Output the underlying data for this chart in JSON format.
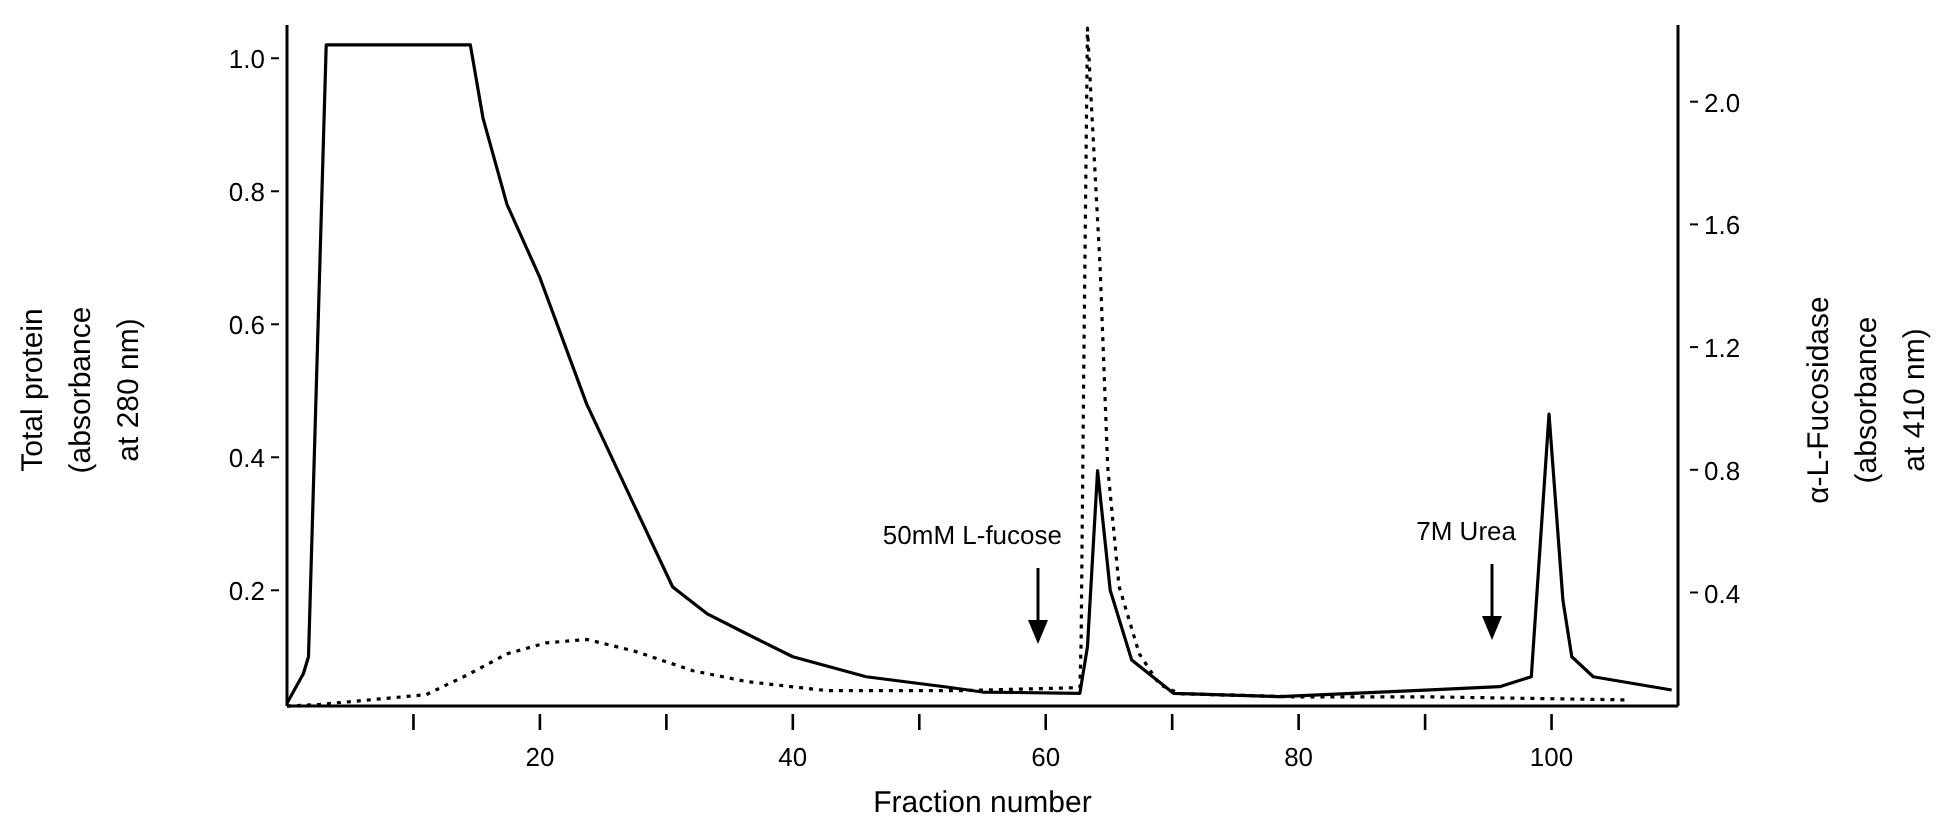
{
  "chart_data": {
    "type": "line",
    "xlabel": "Fraction number",
    "ylabel": "Total protein\n(absorbance\nat 280 nm)",
    "y2label": "α-L-Fucosidase\n(absorbance\nat 410 nm)",
    "xlim": [
      0,
      110
    ],
    "xticks": [
      {
        "value": 10,
        "label": null
      },
      20,
      {
        "value": 30,
        "label": null
      },
      40,
      {
        "value": 50,
        "label": null
      },
      60,
      {
        "value": 70,
        "label": null
      },
      80,
      {
        "value": 90,
        "label": null
      },
      100
    ],
    "ylim": [
      0.026,
      1.05
    ],
    "yticks": [
      0.2,
      0.4,
      0.6,
      0.8,
      {
        "value": 1,
        "label": "1.0"
      }
    ],
    "y2lim": [
      0.03,
      2.25
    ],
    "y2ticks": [
      0.4,
      0.8,
      1.2,
      1.6,
      {
        "value": 2,
        "label": "2.0"
      }
    ],
    "grid": false,
    "marker": "none",
    "series": [
      {
        "color": "#000000",
        "axis": "y",
        "line_style": "solid",
        "x": [
          0,
          1.3,
          1.7,
          3.1,
          14.5,
          15.5,
          17.4,
          20,
          23.7,
          27.4,
          30.5,
          33.2,
          36.3,
          40,
          45.8,
          52,
          55,
          62.7,
          63.3,
          64.1,
          65.1,
          66.8,
          70.1,
          78.5,
          90,
          95.9,
          98.4,
          99.8,
          100.9,
          101.6,
          103.3,
          109.5
        ],
        "values": [
          0.03,
          0.075,
          0.1,
          1.02,
          1.02,
          0.91,
          0.78,
          0.67,
          0.48,
          0.33,
          0.205,
          0.165,
          0.135,
          0.1,
          0.07,
          0.055,
          0.047,
          0.045,
          0.115,
          0.38,
          0.2,
          0.095,
          0.045,
          0.04,
          0.05,
          0.055,
          0.07,
          0.465,
          0.185,
          0.1,
          0.07,
          0.05
        ]
      },
      {
        "color": "#000000",
        "axis": "y2",
        "line_style": "dotted",
        "x": [
          0,
          2.6,
          11,
          14.2,
          17.4,
          20.5,
          23.7,
          27.4,
          32.1,
          36.3,
          42.7,
          53.2,
          62.7,
          62.8,
          63,
          63.3,
          63.6,
          64.3,
          64.9,
          65.8,
          67.4,
          69,
          70.6,
          79.6,
          90,
          105.9
        ],
        "values": [
          0.03,
          0.035,
          0.067,
          0.13,
          0.2,
          0.236,
          0.247,
          0.21,
          0.145,
          0.11,
          0.08,
          0.08,
          0.09,
          0.24,
          1.1,
          2.24,
          2,
          1.46,
          0.81,
          0.42,
          0.2,
          0.1,
          0.07,
          0.06,
          0.06,
          0.05
        ]
      }
    ],
    "annotations": [
      "50mM L-fucose",
      "7M Urea"
    ]
  }
}
